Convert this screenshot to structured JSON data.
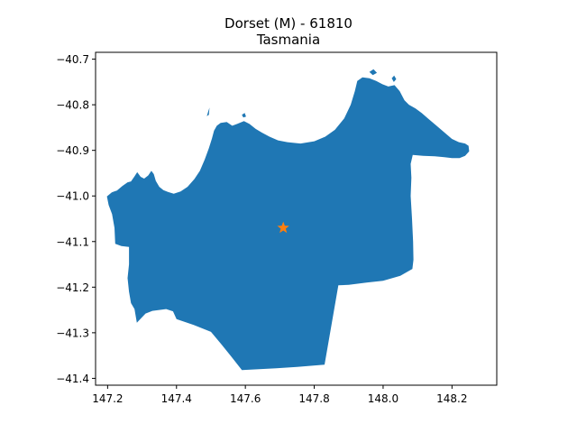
{
  "chart_data": {
    "type": "map",
    "title": "Dorset (M) - 61810",
    "subtitle": "Tasmania",
    "xlim": [
      147.165,
      148.33
    ],
    "ylim": [
      -41.415,
      -40.685
    ],
    "x_ticks": [
      147.2,
      147.4,
      147.6,
      147.8,
      148.0,
      148.2
    ],
    "x_tick_labels": [
      "147.2",
      "147.4",
      "147.6",
      "147.8",
      "148.0",
      "148.2"
    ],
    "y_ticks": [
      -40.7,
      -40.8,
      -40.9,
      -41.0,
      -41.1,
      -41.2,
      -41.3,
      -41.4
    ],
    "y_tick_labels": [
      "−40.7",
      "−40.8",
      "−40.9",
      "−41.0",
      "−41.1",
      "−41.2",
      "−41.3",
      "−41.4"
    ],
    "grid": false,
    "region": {
      "name": "Dorset (M)",
      "color": "#1f77b4",
      "boundary": [
        [
          147.198,
          -41.001
        ],
        [
          147.212,
          -40.992
        ],
        [
          147.227,
          -40.988
        ],
        [
          147.243,
          -40.978
        ],
        [
          147.258,
          -40.97
        ],
        [
          147.268,
          -40.968
        ],
        [
          147.278,
          -40.957
        ],
        [
          147.286,
          -40.948
        ],
        [
          147.296,
          -40.958
        ],
        [
          147.306,
          -40.962
        ],
        [
          147.318,
          -40.955
        ],
        [
          147.327,
          -40.945
        ],
        [
          147.334,
          -40.952
        ],
        [
          147.34,
          -40.967
        ],
        [
          147.35,
          -40.98
        ],
        [
          147.362,
          -40.987
        ],
        [
          147.375,
          -40.991
        ],
        [
          147.392,
          -40.995
        ],
        [
          147.412,
          -40.99
        ],
        [
          147.432,
          -40.98
        ],
        [
          147.452,
          -40.963
        ],
        [
          147.468,
          -40.945
        ],
        [
          147.482,
          -40.92
        ],
        [
          147.494,
          -40.895
        ],
        [
          147.503,
          -40.874
        ],
        [
          147.509,
          -40.857
        ],
        [
          147.517,
          -40.846
        ],
        [
          147.528,
          -40.84
        ],
        [
          147.546,
          -40.838
        ],
        [
          147.562,
          -40.846
        ],
        [
          147.576,
          -40.842
        ],
        [
          147.596,
          -40.836
        ],
        [
          147.612,
          -40.842
        ],
        [
          147.63,
          -40.853
        ],
        [
          147.648,
          -40.861
        ],
        [
          147.67,
          -40.87
        ],
        [
          147.695,
          -40.878
        ],
        [
          147.722,
          -40.882
        ],
        [
          147.76,
          -40.885
        ],
        [
          147.8,
          -40.88
        ],
        [
          147.832,
          -40.87
        ],
        [
          147.86,
          -40.855
        ],
        [
          147.887,
          -40.83
        ],
        [
          147.906,
          -40.8
        ],
        [
          147.918,
          -40.77
        ],
        [
          147.925,
          -40.748
        ],
        [
          147.94,
          -40.74
        ],
        [
          147.96,
          -40.742
        ],
        [
          147.98,
          -40.748
        ],
        [
          147.998,
          -40.755
        ],
        [
          148.015,
          -40.76
        ],
        [
          148.033,
          -40.757
        ],
        [
          148.048,
          -40.77
        ],
        [
          148.062,
          -40.79
        ],
        [
          148.075,
          -40.8
        ],
        [
          148.094,
          -40.808
        ],
        [
          148.112,
          -40.818
        ],
        [
          148.13,
          -40.83
        ],
        [
          148.155,
          -40.846
        ],
        [
          148.18,
          -40.862
        ],
        [
          148.2,
          -40.875
        ],
        [
          148.22,
          -40.882
        ],
        [
          148.238,
          -40.885
        ],
        [
          148.248,
          -40.89
        ],
        [
          148.25,
          -40.902
        ],
        [
          148.238,
          -40.912
        ],
        [
          148.222,
          -40.917
        ],
        [
          148.2,
          -40.917
        ],
        [
          148.178,
          -40.915
        ],
        [
          148.15,
          -40.913
        ],
        [
          148.116,
          -40.912
        ],
        [
          148.086,
          -40.91
        ],
        [
          148.08,
          -40.93
        ],
        [
          148.082,
          -40.96
        ],
        [
          148.08,
          -41.0
        ],
        [
          148.084,
          -41.05
        ],
        [
          148.087,
          -41.1
        ],
        [
          148.088,
          -41.14
        ],
        [
          148.085,
          -41.16
        ],
        [
          148.05,
          -41.175
        ],
        [
          148.0,
          -41.186
        ],
        [
          147.952,
          -41.19
        ],
        [
          147.9,
          -41.195
        ],
        [
          147.87,
          -41.196
        ],
        [
          147.83,
          -41.37
        ],
        [
          147.75,
          -41.375
        ],
        [
          147.69,
          -41.378
        ],
        [
          147.59,
          -41.382
        ],
        [
          147.56,
          -41.353
        ],
        [
          147.53,
          -41.325
        ],
        [
          147.5,
          -41.298
        ],
        [
          147.45,
          -41.283
        ],
        [
          147.4,
          -41.27
        ],
        [
          147.39,
          -41.253
        ],
        [
          147.37,
          -41.248
        ],
        [
          147.33,
          -41.252
        ],
        [
          147.31,
          -41.258
        ],
        [
          147.285,
          -41.278
        ],
        [
          147.278,
          -41.248
        ],
        [
          147.268,
          -41.235
        ],
        [
          147.262,
          -41.21
        ],
        [
          147.258,
          -41.18
        ],
        [
          147.262,
          -41.15
        ],
        [
          147.262,
          -41.112
        ],
        [
          147.24,
          -41.11
        ],
        [
          147.222,
          -41.105
        ],
        [
          147.22,
          -41.07
        ],
        [
          147.213,
          -41.04
        ],
        [
          147.203,
          -41.02
        ]
      ],
      "islands": [
        [
          [
            147.488,
            -40.825
          ],
          [
            147.492,
            -40.815
          ],
          [
            147.496,
            -40.806
          ],
          [
            147.494,
            -40.822
          ]
        ],
        [
          [
            147.96,
            -40.728
          ],
          [
            147.972,
            -40.722
          ],
          [
            147.982,
            -40.73
          ],
          [
            147.97,
            -40.735
          ]
        ],
        [
          [
            148.025,
            -40.742
          ],
          [
            148.032,
            -40.736
          ],
          [
            148.038,
            -40.744
          ],
          [
            148.031,
            -40.75
          ]
        ],
        [
          [
            147.59,
            -40.822
          ],
          [
            147.598,
            -40.818
          ],
          [
            147.602,
            -40.826
          ],
          [
            147.594,
            -40.828
          ]
        ]
      ]
    },
    "marker": {
      "type": "star",
      "color": "#ff7f0e",
      "x": 147.71,
      "y": -41.07
    }
  }
}
